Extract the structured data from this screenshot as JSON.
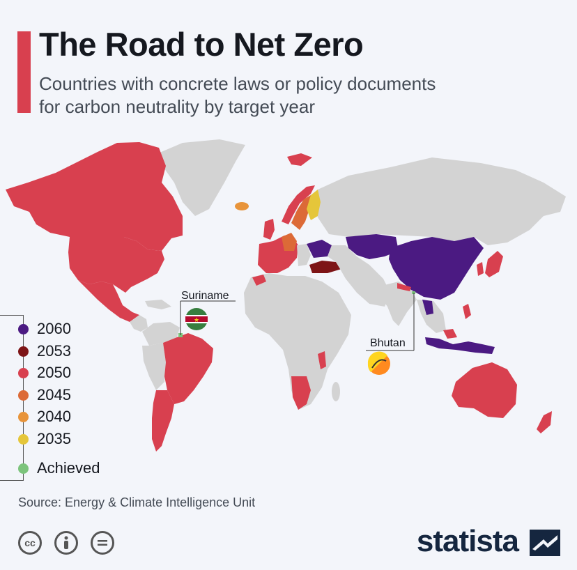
{
  "header": {
    "title": "The Road to Net Zero",
    "subtitle_line1": "Countries with concrete laws or policy documents",
    "subtitle_line2": "for carbon neutrality by target year"
  },
  "callouts": {
    "suriname": "Suriname",
    "bhutan": "Bhutan"
  },
  "legend": [
    {
      "label": "2060",
      "color": "#4b1a82"
    },
    {
      "label": "2053",
      "color": "#7d1416"
    },
    {
      "label": "2050",
      "color": "#d8404f"
    },
    {
      "label": "2045",
      "color": "#dc6a37"
    },
    {
      "label": "2040",
      "color": "#e8943a"
    },
    {
      "label": "2035",
      "color": "#e5c63a"
    },
    {
      "label": "Achieved",
      "color": "#7cc47c"
    }
  ],
  "colors": {
    "no_target": "#d3d3d3",
    "accent": "#d8404f",
    "background": "#f3f5fa"
  },
  "regions": [
    {
      "name": "Canada",
      "category": "2050"
    },
    {
      "name": "United States",
      "category": "2050"
    },
    {
      "name": "Mexico",
      "category": "2050"
    },
    {
      "name": "Brazil",
      "category": "2050"
    },
    {
      "name": "Argentina",
      "category": "2050"
    },
    {
      "name": "Greenland",
      "category": "none"
    },
    {
      "name": "Iceland",
      "category": "2040"
    },
    {
      "name": "Norway",
      "category": "2050"
    },
    {
      "name": "Sweden",
      "category": "2045"
    },
    {
      "name": "Finland",
      "category": "2035"
    },
    {
      "name": "Germany",
      "category": "2045"
    },
    {
      "name": "Western Europe",
      "category": "2050"
    },
    {
      "name": "Ukraine",
      "category": "2060"
    },
    {
      "name": "Turkey",
      "category": "2053"
    },
    {
      "name": "Kazakhstan",
      "category": "2060"
    },
    {
      "name": "China",
      "category": "2060"
    },
    {
      "name": "Japan",
      "category": "2050"
    },
    {
      "name": "South Korea",
      "category": "2050"
    },
    {
      "name": "Indonesia",
      "category": "2060"
    },
    {
      "name": "Australia",
      "category": "2050"
    },
    {
      "name": "New Zealand",
      "category": "2050"
    },
    {
      "name": "South Africa",
      "category": "2050"
    },
    {
      "name": "Suriname",
      "category": "Achieved"
    },
    {
      "name": "Bhutan",
      "category": "Achieved"
    },
    {
      "name": "Russia",
      "category": "none"
    },
    {
      "name": "Africa",
      "category": "none"
    }
  ],
  "source": "Source: Energy & Climate Intelligence Unit",
  "license_icons": [
    "cc-icon",
    "attribution-icon",
    "no-derivatives-icon"
  ],
  "brand": "statista"
}
